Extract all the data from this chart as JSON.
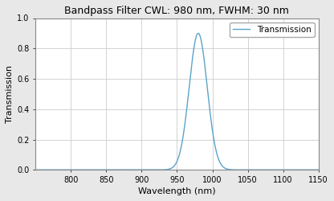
{
  "title": "Bandpass Filter CWL: 980 nm, FWHM: 30 nm",
  "xlabel": "Wavelength (nm)",
  "ylabel": "Transmission",
  "legend_label": "Transmission",
  "cwl": 980,
  "fwhm": 30,
  "peak_transmission": 0.9,
  "x_min": 750,
  "x_max": 1150,
  "y_min": 0.0,
  "y_max": 1.0,
  "x_ticks": [
    800,
    850,
    900,
    950,
    1000,
    1050,
    1100,
    1150
  ],
  "y_ticks": [
    0.0,
    0.2,
    0.4,
    0.6,
    0.8,
    1.0
  ],
  "line_color": "#5ba3c9",
  "background_color": "#ffffff",
  "figure_background": "#e8e8e8",
  "grid_color": "#cccccc",
  "title_fontsize": 9,
  "axis_label_fontsize": 8,
  "tick_fontsize": 7,
  "legend_fontsize": 7.5
}
